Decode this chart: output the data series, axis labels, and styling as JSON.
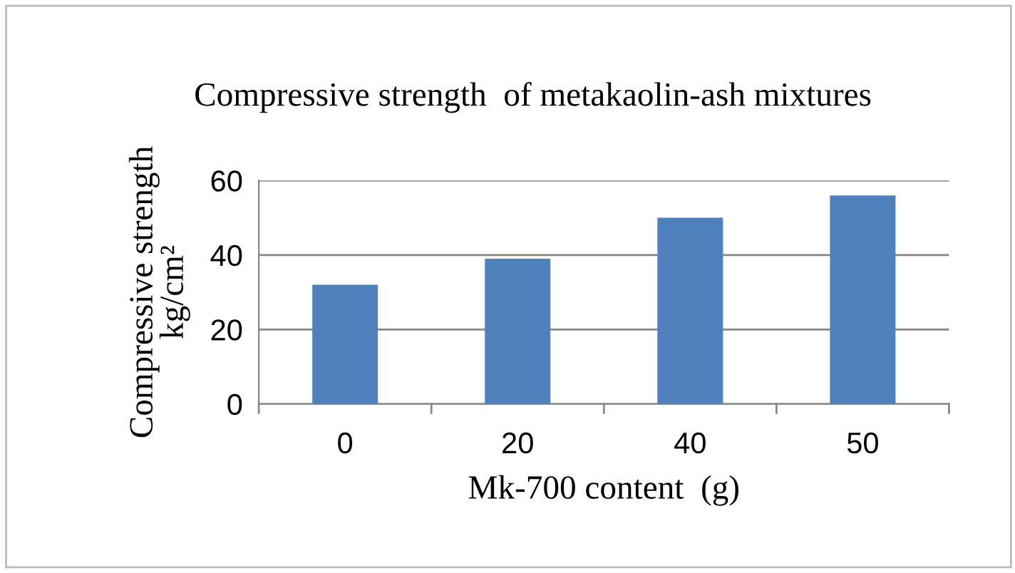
{
  "chart_data": {
    "type": "bar",
    "title": "Compressive strength  of metakaolin-ash mixtures",
    "xlabel": "Mk-700 content  (g)",
    "ylabel": "Compressive strength\nkg/cm²",
    "categories": [
      "0",
      "20",
      "40",
      "50"
    ],
    "values": [
      32,
      39,
      50,
      56
    ],
    "color": "#4f81bd",
    "ylim": [
      0,
      60
    ],
    "yticks": [
      0,
      20,
      40,
      60
    ],
    "grid": "y"
  }
}
